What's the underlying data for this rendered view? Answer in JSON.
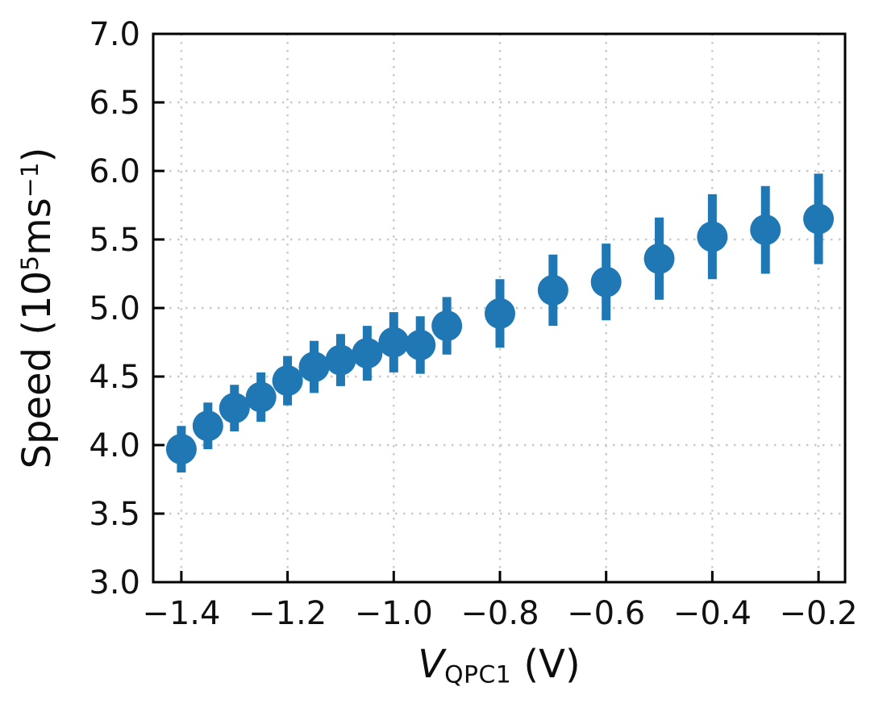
{
  "figure": {
    "xlabel": {
      "variable": "V",
      "subscript": "QPC1",
      "rest": " (V)"
    },
    "ylabel": {
      "p1": "Speed (10",
      "sup1": "5",
      "p2": "ms",
      "sup2": "−1",
      "p3": ")"
    }
  },
  "chart_data": {
    "type": "scatter",
    "title": "",
    "xlabel": "V_QPC1 (V)",
    "ylabel": "Speed (10^5 ms^-1)",
    "xlim": [
      -1.453,
      -0.15
    ],
    "ylim": [
      3.0,
      7.0
    ],
    "grid": true,
    "grid_style": "dotted",
    "legend": false,
    "marker_color": "#1f77b4",
    "grid_color": "#c9c9c9",
    "axis_color": "#000000",
    "tick_label_color": "#111111",
    "tick_direction": "in",
    "xticks": {
      "values": [
        -1.4,
        -1.2,
        -1.0,
        -0.8,
        -0.6,
        -0.4,
        -0.2
      ],
      "labels": [
        "−1.4",
        "−1.2",
        "−1.0",
        "−0.8",
        "−0.6",
        "−0.4",
        "−0.2"
      ]
    },
    "yticks": {
      "values": [
        3.0,
        3.5,
        4.0,
        4.5,
        5.0,
        5.5,
        6.0,
        6.5,
        7.0
      ],
      "labels": [
        "3.0",
        "3.5",
        "4.0",
        "4.5",
        "5.0",
        "5.5",
        "6.0",
        "6.5",
        "7.0"
      ]
    },
    "series": [
      {
        "name": "speed-vs-vqpc1",
        "x": [
          -1.4,
          -1.35,
          -1.3,
          -1.25,
          -1.2,
          -1.15,
          -1.1,
          -1.05,
          -1.0,
          -0.95,
          -0.9,
          -0.8,
          -0.7,
          -0.6,
          -0.5,
          -0.4,
          -0.3,
          -0.2
        ],
        "y": [
          3.97,
          4.14,
          4.27,
          4.35,
          4.47,
          4.57,
          4.62,
          4.67,
          4.75,
          4.73,
          4.87,
          4.96,
          5.13,
          5.19,
          5.36,
          5.52,
          5.57,
          5.65
        ],
        "yerr": [
          0.17,
          0.17,
          0.17,
          0.18,
          0.18,
          0.19,
          0.19,
          0.2,
          0.22,
          0.21,
          0.21,
          0.25,
          0.26,
          0.28,
          0.3,
          0.31,
          0.32,
          0.33
        ]
      }
    ]
  }
}
